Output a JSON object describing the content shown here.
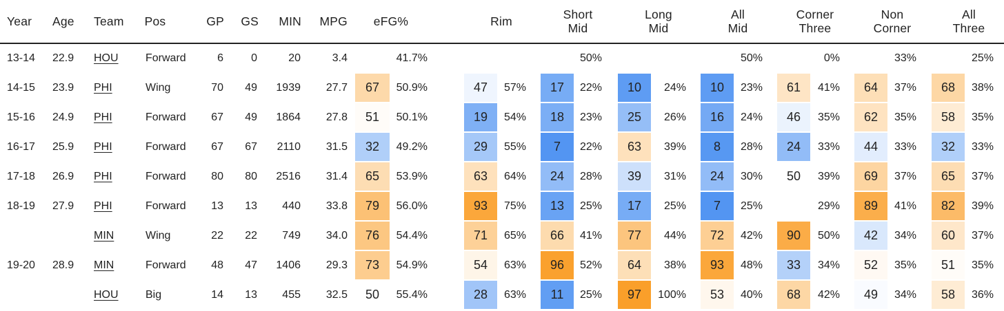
{
  "columns": [
    "Year",
    "Age",
    "Team",
    "Pos",
    "GP",
    "GS",
    "MIN",
    "MPG",
    "eFG%",
    "Rim",
    "Short\nMid",
    "Long\nMid",
    "All\nMid",
    "Corner\nThree",
    "Non\nCorner",
    "All\nThree"
  ],
  "rows": [
    {
      "year": "13-14",
      "age": "22.9",
      "team": "HOU",
      "pos": "Forward",
      "gp": "6",
      "gs": "0",
      "min": "20",
      "mpg": "3.4",
      "stats": [
        {
          "pct": null,
          "value": "41.7%"
        },
        {
          "pct": null,
          "value": ""
        },
        {
          "pct": null,
          "value": "50%"
        },
        {
          "pct": null,
          "value": ""
        },
        {
          "pct": null,
          "value": "50%"
        },
        {
          "pct": null,
          "value": "0%"
        },
        {
          "pct": null,
          "value": "33%"
        },
        {
          "pct": null,
          "value": "25%"
        }
      ]
    },
    {
      "year": "14-15",
      "age": "23.9",
      "team": "PHI",
      "pos": "Wing",
      "gp": "70",
      "gs": "49",
      "min": "1939",
      "mpg": "27.7",
      "stats": [
        {
          "pct": "67",
          "value": "50.9%"
        },
        {
          "pct": "47",
          "value": "57%"
        },
        {
          "pct": "17",
          "value": "22%"
        },
        {
          "pct": "10",
          "value": "24%"
        },
        {
          "pct": "10",
          "value": "23%"
        },
        {
          "pct": "61",
          "value": "41%"
        },
        {
          "pct": "64",
          "value": "37%"
        },
        {
          "pct": "68",
          "value": "38%"
        }
      ]
    },
    {
      "year": "15-16",
      "age": "24.9",
      "team": "PHI",
      "pos": "Forward",
      "gp": "67",
      "gs": "49",
      "min": "1864",
      "mpg": "27.8",
      "stats": [
        {
          "pct": "51",
          "value": "50.1%"
        },
        {
          "pct": "19",
          "value": "54%"
        },
        {
          "pct": "18",
          "value": "23%"
        },
        {
          "pct": "25",
          "value": "26%"
        },
        {
          "pct": "16",
          "value": "24%"
        },
        {
          "pct": "46",
          "value": "35%"
        },
        {
          "pct": "62",
          "value": "35%"
        },
        {
          "pct": "58",
          "value": "35%"
        }
      ]
    },
    {
      "year": "16-17",
      "age": "25.9",
      "team": "PHI",
      "pos": "Forward",
      "gp": "67",
      "gs": "67",
      "min": "2110",
      "mpg": "31.5",
      "stats": [
        {
          "pct": "32",
          "value": "49.2%"
        },
        {
          "pct": "29",
          "value": "55%"
        },
        {
          "pct": "7",
          "value": "22%"
        },
        {
          "pct": "63",
          "value": "39%"
        },
        {
          "pct": "8",
          "value": "28%"
        },
        {
          "pct": "24",
          "value": "33%"
        },
        {
          "pct": "44",
          "value": "33%"
        },
        {
          "pct": "32",
          "value": "33%"
        }
      ]
    },
    {
      "year": "17-18",
      "age": "26.9",
      "team": "PHI",
      "pos": "Forward",
      "gp": "80",
      "gs": "80",
      "min": "2516",
      "mpg": "31.4",
      "stats": [
        {
          "pct": "65",
          "value": "53.9%"
        },
        {
          "pct": "63",
          "value": "64%"
        },
        {
          "pct": "24",
          "value": "28%"
        },
        {
          "pct": "39",
          "value": "31%"
        },
        {
          "pct": "24",
          "value": "30%"
        },
        {
          "pct": "50",
          "value": "39%"
        },
        {
          "pct": "69",
          "value": "37%"
        },
        {
          "pct": "65",
          "value": "37%"
        }
      ]
    },
    {
      "year": "18-19",
      "age": "27.9",
      "team": "PHI",
      "pos": "Forward",
      "gp": "13",
      "gs": "13",
      "min": "440",
      "mpg": "33.8",
      "stats": [
        {
          "pct": "79",
          "value": "56.0%"
        },
        {
          "pct": "93",
          "value": "75%"
        },
        {
          "pct": "13",
          "value": "25%"
        },
        {
          "pct": "17",
          "value": "25%"
        },
        {
          "pct": "7",
          "value": "25%"
        },
        {
          "pct": null,
          "value": "29%"
        },
        {
          "pct": "89",
          "value": "41%"
        },
        {
          "pct": "82",
          "value": "39%"
        }
      ]
    },
    {
      "year": "",
      "age": "",
      "team": "MIN",
      "pos": "Wing",
      "gp": "22",
      "gs": "22",
      "min": "749",
      "mpg": "34.0",
      "stats": [
        {
          "pct": "76",
          "value": "54.4%"
        },
        {
          "pct": "71",
          "value": "65%"
        },
        {
          "pct": "66",
          "value": "41%"
        },
        {
          "pct": "77",
          "value": "44%"
        },
        {
          "pct": "72",
          "value": "42%"
        },
        {
          "pct": "90",
          "value": "50%"
        },
        {
          "pct": "42",
          "value": "34%"
        },
        {
          "pct": "60",
          "value": "37%"
        }
      ]
    },
    {
      "year": "19-20",
      "age": "28.9",
      "team": "MIN",
      "pos": "Forward",
      "gp": "48",
      "gs": "47",
      "min": "1406",
      "mpg": "29.3",
      "stats": [
        {
          "pct": "73",
          "value": "54.9%"
        },
        {
          "pct": "54",
          "value": "63%"
        },
        {
          "pct": "96",
          "value": "52%"
        },
        {
          "pct": "64",
          "value": "38%"
        },
        {
          "pct": "93",
          "value": "48%"
        },
        {
          "pct": "33",
          "value": "34%"
        },
        {
          "pct": "52",
          "value": "35%"
        },
        {
          "pct": "51",
          "value": "35%"
        }
      ]
    },
    {
      "year": "",
      "age": "",
      "team": "HOU",
      "pos": "Big",
      "gp": "14",
      "gs": "13",
      "min": "455",
      "mpg": "32.5",
      "stats": [
        {
          "pct": "50",
          "value": "55.4%"
        },
        {
          "pct": "28",
          "value": "63%"
        },
        {
          "pct": "11",
          "value": "25%"
        },
        {
          "pct": "97",
          "value": "100%"
        },
        {
          "pct": "53",
          "value": "40%"
        },
        {
          "pct": "68",
          "value": "42%"
        },
        {
          "pct": "49",
          "value": "34%"
        },
        {
          "pct": "58",
          "value": "36%"
        }
      ]
    }
  ],
  "scale_colors": {
    "low": "#3a86f0",
    "mid": "#ffffff",
    "high": "#fa9a1e"
  }
}
